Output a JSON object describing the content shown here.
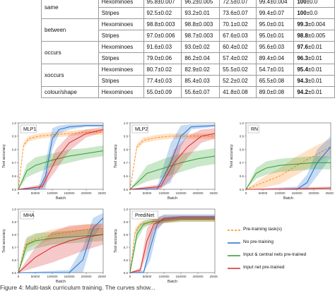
{
  "table": {
    "rows": [
      {
        "task": "same",
        "stim": "Hexominoes",
        "c1": "95.8±0.007",
        "c2": "96.2±0.005",
        "c3": "72.5±0.07",
        "c4": "99.4±0.004",
        "c5": "100±0.0",
        "c5_bold": "100"
      },
      {
        "task": "",
        "stim": "Stripes",
        "c1": "92.5±0.02",
        "c2": "93.2±0.01",
        "c3": "73.6±0.07",
        "c4": "99.4±0.07",
        "c5": "100±0.0",
        "c5_bold": "100"
      },
      {
        "task": "between",
        "stim": "Hexominoes",
        "c1": "98.8±0.003",
        "c2": "98.8±0.003",
        "c3": "70.1±0.02",
        "c4": "95.0±0.01",
        "c5": "99.3±0.004",
        "c5_bold": "99.3"
      },
      {
        "task": "",
        "stim": "Stripes",
        "c1": "97.0±0.006",
        "c2": "98.7±0.003",
        "c3": "67.6±0.03",
        "c4": "95.0±0.01",
        "c5": "98.8±0.005",
        "c5_bold": "98.8"
      },
      {
        "task": "occurs",
        "stim": "Hexominoes",
        "c1": "91.6±0.03",
        "c2": "93.0±0.02",
        "c3": "60.4±0.02",
        "c4": "95.6±0.03",
        "c5": "97.6±0.01",
        "c5_bold": "97.6"
      },
      {
        "task": "",
        "stim": "Stripes",
        "c1": "79.0±0.06",
        "c2": "86.2±0.04",
        "c3": "57.4±0.02",
        "c4": "89.4±0.04",
        "c5": "96.3±0.01",
        "c5_bold": "96.3"
      },
      {
        "task": "xoccurs",
        "stim": "Hexominoes",
        "c1": "80.7±0.02",
        "c2": "82.9±0.02",
        "c3": "55.5±0.02",
        "c4": "54.7±0.01",
        "c5": "95.4±0.01",
        "c5_bold": "95.4"
      },
      {
        "task": "",
        "stim": "Stripes",
        "c1": "77.4±0.03",
        "c2": "85.4±0.03",
        "c3": "52.2±0.02",
        "c4": "65.5±0.08",
        "c5": "94.3±0.01",
        "c5_bold": "94.3"
      },
      {
        "task": "colour/shape",
        "stim": "Hexominoes",
        "c1": "55.0±0.09",
        "c2": "55.6±0.07",
        "c3": "41.8±0.08",
        "c4": "89.0±0.08",
        "c5": "94.2±0.01",
        "c5_bold": "94.2"
      }
    ]
  },
  "colors": {
    "pretrain": "#ff8c1a",
    "nopretrain": "#1f6fd1",
    "central": "#2ca02c",
    "inputnet": "#d62728",
    "band_alpha": 0.25
  },
  "legend": {
    "pretrain": "Pre-training task(s)",
    "nopretrain": "No pre-training",
    "central": "Input & central nets pre-trained",
    "inputnet": "Input net pre-trained"
  },
  "chart_data": [
    {
      "type": "line",
      "title": "MLP1",
      "xlabel": "Batch",
      "ylabel": "Test accuracy",
      "xlim": [
        0,
        250000
      ],
      "ylim": [
        0.5,
        1.0
      ],
      "xticks": [
        "0",
        "50000",
        "100000",
        "150000",
        "200000",
        "250000"
      ],
      "yticks": [
        "0.5",
        "0.6",
        "0.7",
        "0.8",
        "0.9",
        "1.0"
      ],
      "series": [
        {
          "key": "pretrain",
          "style": "dashed",
          "x": [
            0,
            15000,
            30000,
            60000,
            100000,
            150000,
            200000,
            250000
          ],
          "y": [
            0.5,
            0.83,
            0.88,
            0.9,
            0.91,
            0.92,
            0.93,
            0.93
          ],
          "band": [
            0,
            0.02,
            0.02,
            0.02,
            0.02,
            0.02,
            0.02,
            0.02
          ]
        },
        {
          "key": "nopretrain",
          "style": "solid",
          "x": [
            0,
            60000,
            80000,
            100000,
            120000,
            150000,
            200000,
            250000
          ],
          "y": [
            0.5,
            0.5,
            0.6,
            0.88,
            0.95,
            0.97,
            0.98,
            0.98
          ],
          "band": [
            0,
            0.02,
            0.1,
            0.08,
            0.03,
            0.02,
            0.01,
            0.01
          ]
        },
        {
          "key": "central",
          "style": "solid",
          "x": [
            0,
            25000,
            50000,
            100000,
            150000,
            200000,
            250000
          ],
          "y": [
            0.5,
            0.64,
            0.68,
            0.72,
            0.75,
            0.77,
            0.79
          ],
          "band": [
            0,
            0.05,
            0.06,
            0.05,
            0.05,
            0.04,
            0.04
          ]
        },
        {
          "key": "inputnet",
          "style": "solid",
          "x": [
            0,
            70000,
            110000,
            150000,
            200000,
            250000
          ],
          "y": [
            0.5,
            0.52,
            0.72,
            0.85,
            0.92,
            0.95
          ],
          "band": [
            0,
            0.02,
            0.08,
            0.06,
            0.03,
            0.02
          ]
        }
      ]
    },
    {
      "type": "line",
      "title": "MLP2",
      "xlabel": "Batch",
      "ylabel": "Test accuracy",
      "xlim": [
        0,
        250000
      ],
      "ylim": [
        0.5,
        1.0
      ],
      "xticks": [
        "0",
        "50000",
        "100000",
        "150000",
        "200000",
        "250000"
      ],
      "yticks": [
        "0.5",
        "0.6",
        "0.7",
        "0.8",
        "0.9",
        "1.0"
      ],
      "series": [
        {
          "key": "pretrain",
          "style": "dashed",
          "x": [
            0,
            20000,
            40000,
            80000,
            120000,
            250000
          ],
          "y": [
            0.5,
            0.82,
            0.87,
            0.89,
            0.9,
            0.9
          ],
          "band": [
            0,
            0.02,
            0.02,
            0.02,
            0.02,
            0.02
          ]
        },
        {
          "key": "nopretrain",
          "style": "solid",
          "x": [
            0,
            80000,
            120000,
            150000,
            180000,
            250000
          ],
          "y": [
            0.5,
            0.5,
            0.7,
            0.9,
            0.97,
            0.98
          ],
          "band": [
            0,
            0.02,
            0.15,
            0.08,
            0.02,
            0.01
          ]
        },
        {
          "key": "central",
          "style": "solid",
          "x": [
            0,
            50000,
            100000,
            150000,
            200000,
            250000
          ],
          "y": [
            0.5,
            0.62,
            0.66,
            0.7,
            0.73,
            0.75
          ],
          "band": [
            0,
            0.06,
            0.07,
            0.07,
            0.06,
            0.06
          ]
        },
        {
          "key": "inputnet",
          "style": "solid",
          "x": [
            0,
            90000,
            130000,
            170000,
            210000,
            250000
          ],
          "y": [
            0.5,
            0.52,
            0.7,
            0.82,
            0.9,
            0.92
          ],
          "band": [
            0,
            0.02,
            0.1,
            0.08,
            0.05,
            0.04
          ]
        }
      ]
    },
    {
      "type": "line",
      "title": "RN",
      "xlabel": "Batch",
      "ylabel": "Test accuracy",
      "xlim": [
        0,
        250000
      ],
      "ylim": [
        0.5,
        1.0
      ],
      "xticks": [
        "0",
        "50000",
        "100000",
        "150000",
        "200000",
        "250000"
      ],
      "yticks": [
        "0.5",
        "0.6",
        "0.7",
        "0.8",
        "0.9",
        "1.0"
      ],
      "series": [
        {
          "key": "pretrain",
          "style": "dashed",
          "x": [
            0,
            50000,
            100000,
            150000,
            200000,
            250000
          ],
          "y": [
            0.5,
            0.55,
            0.6,
            0.68,
            0.75,
            0.82
          ],
          "band": [
            0,
            0.04,
            0.06,
            0.07,
            0.07,
            0.06
          ]
        },
        {
          "key": "nopretrain",
          "style": "solid",
          "x": [
            0,
            150000,
            180000,
            210000,
            250000
          ],
          "y": [
            0.5,
            0.5,
            0.55,
            0.7,
            0.82
          ],
          "band": [
            0,
            0.02,
            0.06,
            0.1,
            0.08
          ]
        },
        {
          "key": "central",
          "style": "solid",
          "x": [
            0,
            30000,
            60000,
            100000,
            150000,
            200000,
            250000
          ],
          "y": [
            0.5,
            0.62,
            0.66,
            0.68,
            0.69,
            0.7,
            0.7
          ],
          "band": [
            0,
            0.04,
            0.05,
            0.05,
            0.05,
            0.05,
            0.05
          ]
        },
        {
          "key": "inputnet",
          "style": "solid",
          "x": [
            0,
            100000,
            250000
          ],
          "y": [
            0.5,
            0.5,
            0.51
          ],
          "band": [
            0,
            0.01,
            0.01
          ]
        }
      ]
    },
    {
      "type": "line",
      "title": "MHA",
      "xlabel": "Batch",
      "ylabel": "Test accuracy",
      "xlim": [
        0,
        250000
      ],
      "ylim": [
        0.5,
        1.0
      ],
      "xticks": [
        "0",
        "50000",
        "100000",
        "150000",
        "200000",
        "250000"
      ],
      "yticks": [
        "0.5",
        "0.6",
        "0.7",
        "0.8",
        "0.9",
        "1.0"
      ],
      "series": [
        {
          "key": "pretrain",
          "style": "dashed",
          "x": [
            0,
            20000,
            50000,
            100000,
            150000,
            200000,
            250000
          ],
          "y": [
            0.5,
            0.72,
            0.76,
            0.8,
            0.82,
            0.84,
            0.85
          ],
          "band": [
            0,
            0.04,
            0.04,
            0.04,
            0.04,
            0.04,
            0.04
          ]
        },
        {
          "key": "nopretrain",
          "style": "solid",
          "x": [
            0,
            150000,
            190000,
            220000,
            250000
          ],
          "y": [
            0.5,
            0.5,
            0.6,
            0.85,
            0.93
          ],
          "band": [
            0,
            0.02,
            0.1,
            0.08,
            0.04
          ]
        },
        {
          "key": "central",
          "style": "solid",
          "x": [
            0,
            25000,
            50000,
            100000,
            150000,
            200000,
            250000
          ],
          "y": [
            0.5,
            0.72,
            0.75,
            0.77,
            0.78,
            0.79,
            0.8
          ],
          "band": [
            0,
            0.06,
            0.06,
            0.05,
            0.05,
            0.05,
            0.05
          ]
        },
        {
          "key": "inputnet",
          "style": "solid",
          "x": [
            0,
            50000,
            100000,
            150000,
            200000,
            250000
          ],
          "y": [
            0.5,
            0.62,
            0.7,
            0.75,
            0.78,
            0.8
          ],
          "band": [
            0,
            0.08,
            0.12,
            0.12,
            0.1,
            0.08
          ]
        }
      ]
    },
    {
      "type": "line",
      "title": "PrediNet",
      "xlabel": "Batch",
      "ylabel": "Test accuracy",
      "xlim": [
        0,
        250000
      ],
      "ylim": [
        0.5,
        1.0
      ],
      "xticks": [
        "0",
        "50000",
        "100000",
        "150000",
        "200000",
        "250000"
      ],
      "yticks": [
        "0.5",
        "0.6",
        "0.7",
        "0.8",
        "0.9",
        "1.0"
      ],
      "series": [
        {
          "key": "pretrain",
          "style": "dashed",
          "x": [
            0,
            15000,
            30000,
            60000,
            100000,
            150000,
            250000
          ],
          "y": [
            0.5,
            0.82,
            0.88,
            0.9,
            0.91,
            0.92,
            0.92
          ],
          "band": [
            0,
            0.03,
            0.02,
            0.02,
            0.02,
            0.02,
            0.02
          ]
        },
        {
          "key": "nopretrain",
          "style": "solid",
          "x": [
            0,
            40000,
            60000,
            80000,
            100000,
            150000,
            250000
          ],
          "y": [
            0.5,
            0.5,
            0.7,
            0.88,
            0.93,
            0.94,
            0.94
          ],
          "band": [
            0,
            0.02,
            0.1,
            0.05,
            0.03,
            0.02,
            0.02
          ]
        },
        {
          "key": "central",
          "style": "solid",
          "x": [
            0,
            20000,
            40000,
            60000,
            100000,
            150000,
            250000
          ],
          "y": [
            0.5,
            0.8,
            0.88,
            0.9,
            0.91,
            0.92,
            0.92
          ],
          "band": [
            0,
            0.05,
            0.03,
            0.02,
            0.02,
            0.02,
            0.02
          ]
        },
        {
          "key": "inputnet",
          "style": "solid",
          "x": [
            0,
            30000,
            50000,
            70000,
            100000,
            150000,
            250000
          ],
          "y": [
            0.5,
            0.52,
            0.75,
            0.88,
            0.92,
            0.93,
            0.93
          ],
          "band": [
            0,
            0.02,
            0.1,
            0.05,
            0.03,
            0.02,
            0.02
          ]
        }
      ]
    }
  ],
  "caption": "Figure 4: Multi-task curriculum training. The curves show..."
}
